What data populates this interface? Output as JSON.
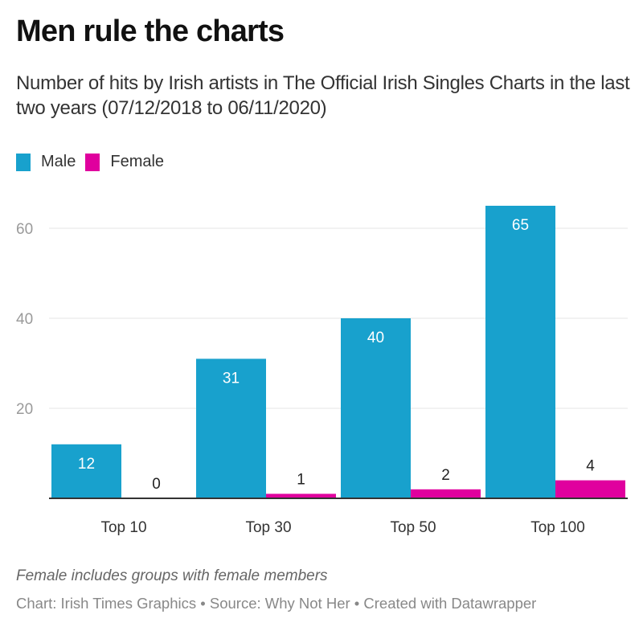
{
  "header": {
    "title": "Men rule the charts",
    "subtitle": "Number of hits by Irish artists in The Official Irish Singles Charts in the last two years (07/12/2018 to 06/11/2020)"
  },
  "legend": [
    {
      "label": "Male",
      "color": "#18a1cd"
    },
    {
      "label": "Female",
      "color": "#e0009e"
    }
  ],
  "footer": {
    "note": "Female includes groups with female members",
    "byline": "Chart: Irish Times Graphics • Source: Why Not Her • Created with Datawrapper"
  },
  "chart_data": {
    "type": "bar",
    "title": "Men rule the charts",
    "subtitle": "Number of hits by Irish artists in The Official Irish Singles Charts in the last two years (07/12/2018 to 06/11/2020)",
    "categories": [
      "Top 10",
      "Top 30",
      "Top 50",
      "Top 100"
    ],
    "series": [
      {
        "name": "Male",
        "color": "#18a1cd",
        "values": [
          12,
          31,
          40,
          65
        ]
      },
      {
        "name": "Female",
        "color": "#e0009e",
        "values": [
          0,
          1,
          2,
          4
        ]
      }
    ],
    "xlabel": "",
    "ylabel": "",
    "ylim": [
      0,
      65
    ],
    "yticks": [
      20,
      40,
      60
    ],
    "grid": true,
    "legend_position": "top-left",
    "data_labels": true
  }
}
